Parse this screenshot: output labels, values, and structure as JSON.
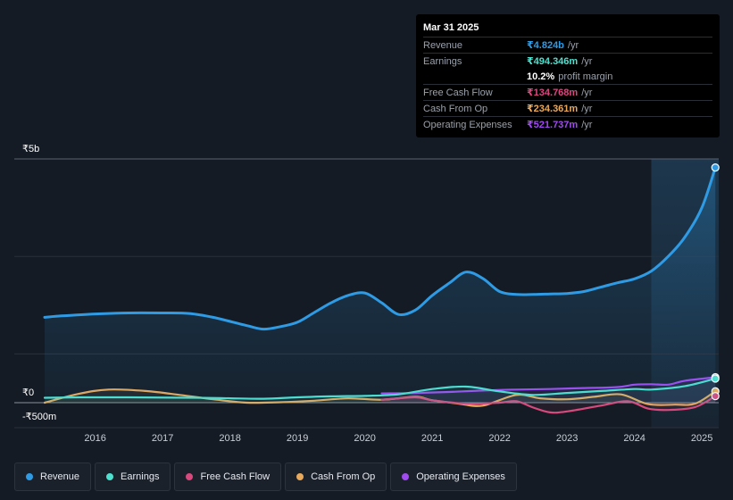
{
  "tooltip": {
    "date": "Mar 31 2025",
    "rows": [
      {
        "label": "Revenue",
        "value": "₹4.824b",
        "unit": "/yr",
        "color": "#2f9be4"
      },
      {
        "label": "Earnings",
        "value": "₹494.346m",
        "unit": "/yr",
        "color": "#4ee0cf"
      },
      {
        "label": "",
        "value": "10.2%",
        "unit": "profit margin",
        "color": "#ffffff"
      },
      {
        "label": "Free Cash Flow",
        "value": "₹134.768m",
        "unit": "/yr",
        "color": "#d8497e"
      },
      {
        "label": "Cash From Op",
        "value": "₹234.361m",
        "unit": "/yr",
        "color": "#e8a95c"
      },
      {
        "label": "Operating Expenses",
        "value": "₹521.737m",
        "unit": "/yr",
        "color": "#a04bef"
      }
    ]
  },
  "chart_data": {
    "type": "line",
    "title": "",
    "y_axis_labels": {
      "top": "₹5b",
      "zero": "₹0",
      "bottom": "-₹500m"
    },
    "ylim": [
      -500,
      5000
    ],
    "unit": "₹m",
    "x_ticks": [
      "2016",
      "2017",
      "2018",
      "2019",
      "2020",
      "2021",
      "2022",
      "2023",
      "2024",
      "2025"
    ],
    "x_tick_values": [
      2016,
      2017,
      2018,
      2019,
      2020,
      2021,
      2022,
      2023,
      2024,
      2025
    ],
    "xlim": [
      2014.8,
      2025.25
    ],
    "highlight_start": 2024.25,
    "series": [
      {
        "name": "Revenue",
        "color": "#2f9be4",
        "x": [
          2015.25,
          2015.5,
          2016.0,
          2016.5,
          2017.0,
          2017.4,
          2017.75,
          2018.25,
          2018.5,
          2018.75,
          2019.0,
          2019.25,
          2019.5,
          2019.75,
          2020.0,
          2020.25,
          2020.5,
          2020.75,
          2021.0,
          2021.25,
          2021.5,
          2021.75,
          2022.0,
          2022.25,
          2022.5,
          2022.75,
          2023.0,
          2023.25,
          2023.5,
          2023.75,
          2024.0,
          2024.25,
          2024.5,
          2024.75,
          2025.0,
          2025.2
        ],
        "values": [
          1750,
          1780,
          1820,
          1840,
          1840,
          1830,
          1750,
          1580,
          1510,
          1560,
          1650,
          1850,
          2050,
          2200,
          2250,
          2050,
          1810,
          1900,
          2200,
          2450,
          2680,
          2550,
          2280,
          2220,
          2220,
          2230,
          2240,
          2280,
          2370,
          2460,
          2540,
          2700,
          3000,
          3400,
          4000,
          4824
        ]
      },
      {
        "name": "Earnings",
        "color": "#4ee0cf",
        "x": [
          2015.25,
          2015.75,
          2016.5,
          2017.5,
          2018.0,
          2018.5,
          2019.0,
          2019.5,
          2020.0,
          2020.5,
          2021.0,
          2021.5,
          2022.0,
          2022.5,
          2023.0,
          2023.5,
          2024.0,
          2024.25,
          2024.75,
          2025.2
        ],
        "values": [
          100,
          110,
          110,
          100,
          90,
          80,
          110,
          130,
          140,
          170,
          280,
          330,
          230,
          160,
          200,
          240,
          280,
          270,
          340,
          494
        ]
      },
      {
        "name": "Free Cash Flow",
        "color": "#d8497e",
        "x": [
          2020.25,
          2020.75,
          2021.0,
          2021.5,
          2022.0,
          2022.25,
          2022.5,
          2022.75,
          2023.0,
          2023.5,
          2023.9,
          2024.2,
          2024.5,
          2024.9,
          2025.2
        ],
        "values": [
          60,
          110,
          50,
          -20,
          0,
          30,
          -100,
          -200,
          -180,
          -60,
          30,
          -120,
          -150,
          -90,
          135
        ]
      },
      {
        "name": "Cash From Op",
        "color": "#e8a95c",
        "x": [
          2015.25,
          2015.75,
          2016.2,
          2016.75,
          2017.25,
          2017.75,
          2018.25,
          2018.75,
          2019.25,
          2019.75,
          2020.25,
          2020.75,
          2021.0,
          2021.4,
          2021.75,
          2022.25,
          2022.6,
          2023.0,
          2023.4,
          2023.8,
          2024.2,
          2024.6,
          2024.9,
          2025.2
        ],
        "values": [
          0,
          180,
          270,
          240,
          160,
          70,
          0,
          10,
          40,
          90,
          60,
          120,
          50,
          -20,
          -60,
          160,
          90,
          70,
          120,
          170,
          -30,
          -40,
          -20,
          234
        ]
      },
      {
        "name": "Operating Expenses",
        "color": "#a04bef",
        "x": [
          2020.25,
          2020.75,
          2021.25,
          2021.75,
          2022.25,
          2022.75,
          2023.25,
          2023.75,
          2024.0,
          2024.25,
          2024.5,
          2024.75,
          2025.2
        ],
        "values": [
          190,
          200,
          220,
          250,
          270,
          280,
          300,
          320,
          370,
          380,
          370,
          450,
          522
        ]
      }
    ]
  },
  "legend": {
    "items": [
      {
        "label": "Revenue",
        "color": "#2f9be4"
      },
      {
        "label": "Earnings",
        "color": "#4ee0cf"
      },
      {
        "label": "Free Cash Flow",
        "color": "#d8497e"
      },
      {
        "label": "Cash From Op",
        "color": "#e8a95c"
      },
      {
        "label": "Operating Expenses",
        "color": "#a04bef"
      }
    ]
  }
}
